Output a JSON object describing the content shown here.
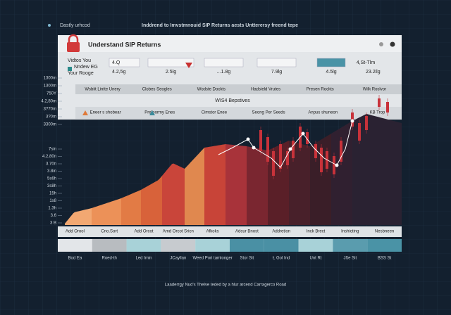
{
  "top": {
    "left": "Dastly urhcod",
    "title": "Inddrend to Imvstmnouid SIP Returns aests Untterersy freend tepe"
  },
  "panel": {
    "title": "Understand SIP Returns",
    "labels": [
      "Vidtos You",
      "Nndew EG",
      "Your Rooge"
    ],
    "fields": [
      {
        "box": "4.Q",
        "sub": "4.2,5g"
      },
      {
        "box": "2.5lg"
      },
      {
        "box": "...1.8g"
      },
      {
        "box": "7.9lg"
      },
      {
        "box": "4.5lg"
      },
      {
        "box": "4,St-Tlm",
        "sub": "23.2ilg"
      }
    ],
    "header": [
      "Wsbiit Lintte Unery",
      "Clobes Seogles",
      "Wodste Dockts",
      "Hadsield Vrutes",
      "Presen Rockts",
      "Wilk Roslvor"
    ],
    "subheader": "WIS4 Bepstives",
    "row": [
      "Eneer s shobear",
      "Prefoormy Enes",
      "Cimstor Enee",
      "Seong Per Seeds",
      "Anpus shuneon",
      "KB Trop"
    ]
  },
  "axis_labels": [
    "1300m",
    "1300m",
    "750Y",
    "4.2,80m",
    "3?70m",
    "3?0m",
    "3300m",
    "7sin",
    "4.2,80n",
    "3.70n",
    "3.8in",
    "5s6h",
    "3s8h",
    "15h",
    "1s8",
    "1.3h",
    "3.6",
    "3 B"
  ],
  "legend": [
    "Add Orool",
    "Cno.Sort",
    "Add Orcot",
    "Amd Orcot Sricn",
    "Afkoks",
    "Adcur Bnost",
    "Addretion",
    "Inck Brect",
    "Inshicting",
    "Nesbneen"
  ],
  "bottom": [
    "Bod Ea",
    "Roed-th",
    "Led Imin",
    "JCayllan",
    "Weed Pori tamlonger",
    "Stor Sit",
    "Ł Gol Ind",
    "Unt Rt",
    "Jße Sit",
    "BSS St"
  ],
  "footer": "Laaderrgy Nud's Thelve teded by a hlur arcend Carragerco Road"
}
